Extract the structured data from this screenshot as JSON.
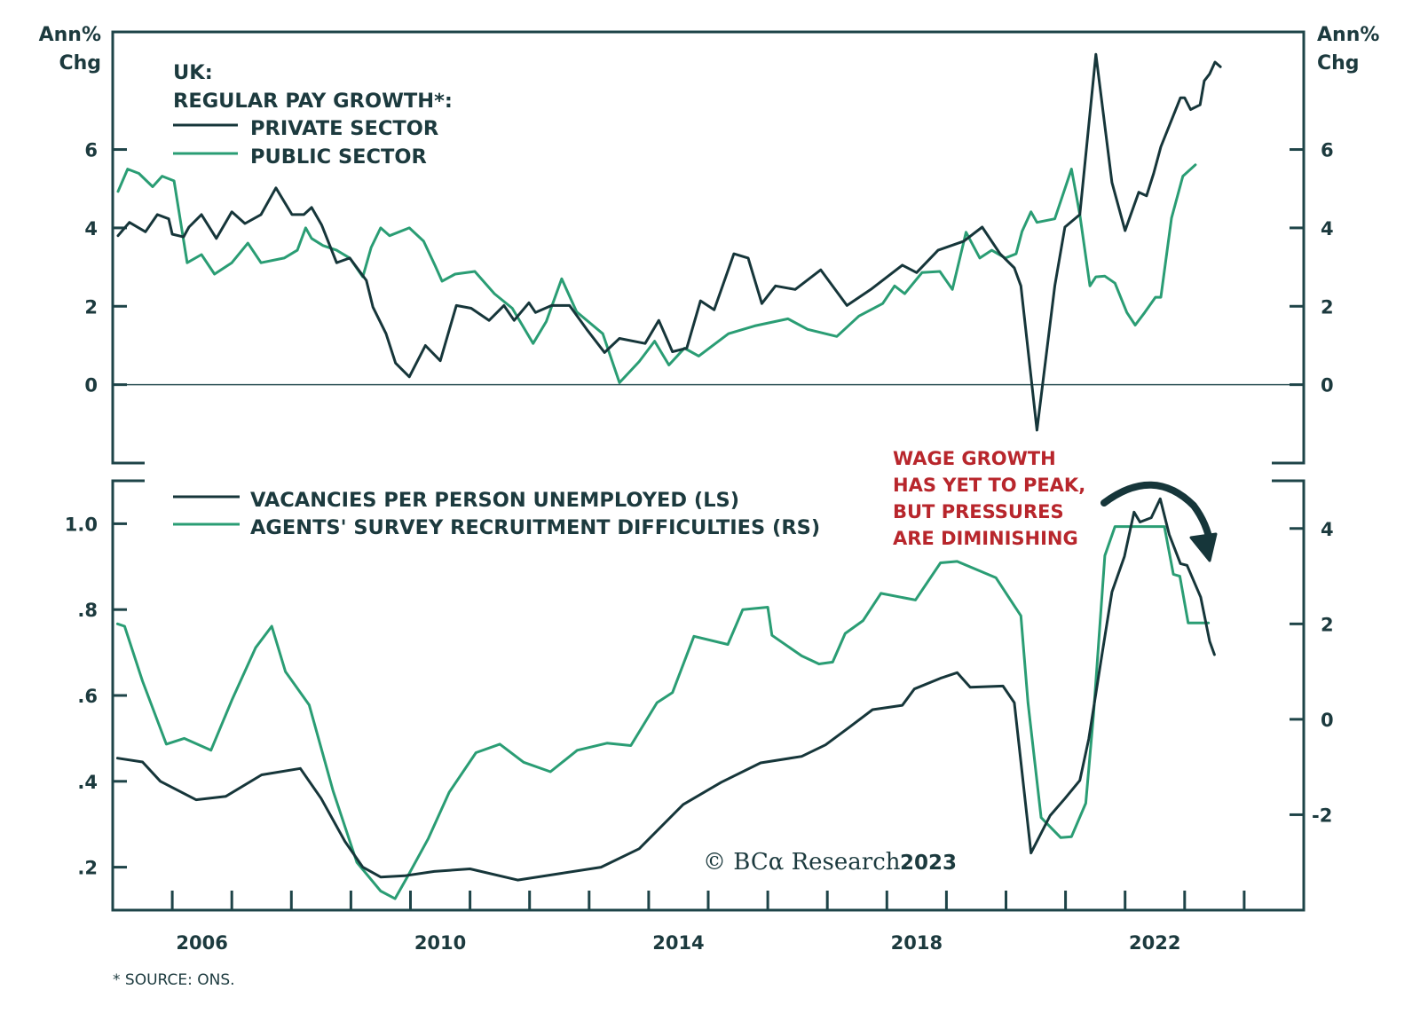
{
  "colors": {
    "dark": "#16363a",
    "green": "#2a9d74",
    "axis": "#1e4448",
    "annotation": "#b8262c"
  },
  "chart_data": [
    {
      "type": "line",
      "panel": "top",
      "legend_title_lines": [
        "UK:",
        "REGULAR PAY GROWTH*:"
      ],
      "legend_placement": "top-left",
      "left_unit_lines": [
        "Ann%",
        "Chg"
      ],
      "right_unit_lines": [
        "Ann%",
        "Chg"
      ],
      "xlim": [
        2005,
        2025
      ],
      "ylim": [
        -2,
        9
      ],
      "yticks": [
        0,
        2,
        4,
        6
      ],
      "ytick_labels": [
        "0",
        "2",
        "4",
        "6"
      ],
      "zero_line": true,
      "grid": false,
      "series": [
        {
          "name": "PRIVATE SECTOR",
          "color_key": "dark",
          "axis": "left",
          "x": [
            2005.09,
            2005.28,
            2005.55,
            2005.75,
            2005.94,
            2006.0,
            2006.19,
            2006.28,
            2006.49,
            2006.74,
            2007.0,
            2007.22,
            2007.49,
            2007.74,
            2008.01,
            2008.21,
            2008.34,
            2008.51,
            2008.76,
            2008.98,
            2009.26,
            2009.37,
            2009.59,
            2009.75,
            2009.98,
            2010.25,
            2010.5,
            2010.77,
            2011.02,
            2011.32,
            2011.57,
            2011.74,
            2011.99,
            2012.1,
            2012.37,
            2012.67,
            2012.96,
            2013.26,
            2013.51,
            2013.94,
            2014.17,
            2014.4,
            2014.64,
            2014.87,
            2015.1,
            2015.43,
            2015.67,
            2015.9,
            2016.13,
            2016.46,
            2016.89,
            2017.33,
            2017.73,
            2018.26,
            2018.5,
            2018.86,
            2019.29,
            2019.6,
            2019.9,
            2020.14,
            2020.25,
            2020.52,
            2020.82,
            2020.99,
            2021.24,
            2021.51,
            2021.78,
            2022.0,
            2022.23,
            2022.36,
            2022.48,
            2022.6,
            2022.93,
            2023.0,
            2023.1,
            2023.26,
            2023.33,
            2023.42,
            2023.51,
            2023.6
          ],
          "y": [
            3.8,
            4.14,
            3.9,
            4.34,
            4.23,
            3.84,
            3.77,
            4.02,
            4.34,
            3.73,
            4.41,
            4.11,
            4.34,
            5.02,
            4.34,
            4.34,
            4.52,
            4.07,
            3.11,
            3.23,
            2.66,
            1.98,
            1.3,
            0.55,
            0.2,
            1.0,
            0.61,
            2.02,
            1.95,
            1.64,
            2.02,
            1.64,
            2.09,
            1.84,
            2.02,
            2.02,
            1.41,
            0.82,
            1.18,
            1.05,
            1.64,
            0.84,
            0.93,
            2.14,
            1.91,
            3.34,
            3.23,
            2.07,
            2.52,
            2.43,
            2.93,
            2.02,
            2.43,
            3.05,
            2.86,
            3.43,
            3.66,
            4.02,
            3.34,
            2.98,
            2.52,
            -1.16,
            2.52,
            4.02,
            4.34,
            8.43,
            5.16,
            3.93,
            4.91,
            4.82,
            5.39,
            6.07,
            7.32,
            7.32,
            7.02,
            7.14,
            7.75,
            7.93,
            8.23,
            8.11
          ]
        },
        {
          "name": "PUBLIC SECTOR",
          "color_key": "green",
          "axis": "left",
          "x": [
            2005.09,
            2005.25,
            2005.44,
            2005.67,
            2005.83,
            2006.03,
            2006.25,
            2006.49,
            2006.71,
            2007.0,
            2007.27,
            2007.49,
            2007.88,
            2008.1,
            2008.24,
            2008.34,
            2008.53,
            2008.76,
            2008.98,
            2009.2,
            2009.34,
            2009.5,
            2009.65,
            2009.98,
            2010.22,
            2010.41,
            2010.53,
            2010.75,
            2011.08,
            2011.41,
            2011.71,
            2012.06,
            2012.28,
            2012.54,
            2012.79,
            2013.23,
            2013.51,
            2013.84,
            2014.1,
            2014.34,
            2014.6,
            2014.84,
            2015.34,
            2015.78,
            2016.34,
            2016.67,
            2017.16,
            2017.53,
            2017.93,
            2018.13,
            2018.3,
            2018.59,
            2018.89,
            2019.1,
            2019.33,
            2019.56,
            2019.76,
            2019.99,
            2020.17,
            2020.27,
            2020.42,
            2020.52,
            2020.82,
            2021.1,
            2021.24,
            2021.41,
            2021.51,
            2021.66,
            2021.83,
            2022.03,
            2022.17,
            2022.33,
            2022.51,
            2022.6,
            2022.78,
            2022.97,
            2023.18
          ],
          "y": [
            4.93,
            5.5,
            5.39,
            5.05,
            5.32,
            5.2,
            3.11,
            3.32,
            2.82,
            3.11,
            3.61,
            3.11,
            3.23,
            3.43,
            4.0,
            3.73,
            3.55,
            3.43,
            3.23,
            2.75,
            3.5,
            4.0,
            3.8,
            4.0,
            3.66,
            3.05,
            2.64,
            2.82,
            2.89,
            2.32,
            1.95,
            1.05,
            1.61,
            2.7,
            1.86,
            1.3,
            0.05,
            0.59,
            1.11,
            0.5,
            0.93,
            0.73,
            1.3,
            1.5,
            1.68,
            1.41,
            1.23,
            1.75,
            2.07,
            2.52,
            2.32,
            2.86,
            2.89,
            2.43,
            3.89,
            3.23,
            3.43,
            3.23,
            3.34,
            3.91,
            4.41,
            4.14,
            4.23,
            5.5,
            4.34,
            2.52,
            2.75,
            2.77,
            2.59,
            1.84,
            1.52,
            1.84,
            2.23,
            2.23,
            4.25,
            5.32,
            5.61
          ]
        }
      ]
    },
    {
      "type": "line",
      "panel": "bottom",
      "legend_placement": "top-left",
      "xlim": [
        2005,
        2025
      ],
      "xticks": [
        2006,
        2010,
        2014,
        2018,
        2022
      ],
      "xtick_labels": [
        "2006",
        "2010",
        "2014",
        "2018",
        "2022"
      ],
      "minor_xtick_step_years": 1,
      "left_axis": {
        "ylim": [
          0.1,
          1.1
        ],
        "yticks": [
          0.2,
          0.4,
          0.6,
          0.8,
          1.0
        ],
        "ytick_labels": [
          ".2",
          ".4",
          ".6",
          ".8",
          "1.0"
        ]
      },
      "right_axis": {
        "ylim": [
          -4,
          5
        ],
        "yticks": [
          -2,
          0,
          2,
          4
        ],
        "ytick_labels": [
          "-2",
          "0",
          "2",
          "4"
        ]
      },
      "grid": false,
      "annotation": {
        "lines": [
          "WAGE GROWTH",
          "HAS YET TO PEAK,",
          "BUT PRESSURES",
          "ARE DIMINISHING"
        ],
        "arrow": "curved-down-arrow"
      },
      "series": [
        {
          "name": "VACANCIES PER PERSON UNEMPLOYED (LS)",
          "color_key": "dark",
          "axis": "left",
          "x": [
            2005.08,
            2005.5,
            2005.8,
            2006.4,
            2006.9,
            2007.5,
            2008.15,
            2008.5,
            2008.9,
            2009.2,
            2009.5,
            2009.9,
            2010.4,
            2011.0,
            2011.8,
            2012.5,
            2013.2,
            2013.84,
            2014.58,
            2015.22,
            2015.88,
            2016.57,
            2016.97,
            2017.37,
            2017.76,
            2018.26,
            2018.46,
            2018.9,
            2019.18,
            2019.4,
            2019.95,
            2020.14,
            2020.42,
            2020.74,
            2020.99,
            2021.24,
            2021.39,
            2021.59,
            2021.78,
            2021.99,
            2022.15,
            2022.25,
            2022.44,
            2022.59,
            2022.74,
            2022.93,
            2023.04,
            2023.27,
            2023.42,
            2023.5
          ],
          "y": [
            0.454,
            0.445,
            0.4,
            0.357,
            0.365,
            0.415,
            0.43,
            0.36,
            0.26,
            0.2,
            0.177,
            0.18,
            0.19,
            0.196,
            0.17,
            0.185,
            0.2,
            0.243,
            0.346,
            0.398,
            0.443,
            0.458,
            0.485,
            0.526,
            0.567,
            0.577,
            0.615,
            0.64,
            0.653,
            0.619,
            0.622,
            0.583,
            0.233,
            0.32,
            0.36,
            0.402,
            0.499,
            0.676,
            0.841,
            0.924,
            1.027,
            1.004,
            1.014,
            1.058,
            0.975,
            0.907,
            0.903,
            0.829,
            0.726,
            0.695
          ]
        },
        {
          "name": "AGENTS' SURVEY RECRUITMENT DIFFICULTIES (RS)",
          "color_key": "green",
          "axis": "right",
          "x": [
            2005.08,
            2005.2,
            2005.5,
            2005.9,
            2006.2,
            2006.65,
            2007.0,
            2007.4,
            2007.67,
            2007.9,
            2008.3,
            2008.7,
            2009.1,
            2009.5,
            2009.74,
            2009.95,
            2010.3,
            2010.65,
            2011.1,
            2011.5,
            2011.9,
            2012.35,
            2012.8,
            2013.3,
            2013.7,
            2014.14,
            2014.4,
            2014.76,
            2015.33,
            2015.58,
            2016.0,
            2016.07,
            2016.57,
            2016.86,
            2017.09,
            2017.3,
            2017.6,
            2017.9,
            2018.48,
            2018.9,
            2019.18,
            2019.83,
            2020.25,
            2020.37,
            2020.59,
            2020.92,
            2021.1,
            2021.34,
            2021.47,
            2021.66,
            2021.83,
            2022.66,
            2022.81,
            2022.92,
            2023.06,
            2023.4
          ],
          "y": [
            2.0,
            1.95,
            0.8,
            -0.52,
            -0.4,
            -0.65,
            0.4,
            1.5,
            1.95,
            1.0,
            0.3,
            -1.5,
            -3.0,
            -3.6,
            -3.76,
            -3.3,
            -2.5,
            -1.53,
            -0.7,
            -0.52,
            -0.9,
            -1.1,
            -0.65,
            -0.5,
            -0.55,
            0.35,
            0.56,
            1.74,
            1.57,
            2.3,
            2.35,
            1.76,
            1.33,
            1.16,
            1.2,
            1.8,
            2.07,
            2.64,
            2.5,
            3.28,
            3.31,
            2.97,
            2.17,
            0.35,
            -2.06,
            -2.48,
            -2.46,
            -1.76,
            0.09,
            3.43,
            4.04,
            4.04,
            3.04,
            3.0,
            2.02,
            2.02
          ]
        }
      ]
    }
  ],
  "footnote": "* SOURCE: ONS.",
  "watermark": {
    "text": "© BCα Research",
    "year": "2023"
  }
}
